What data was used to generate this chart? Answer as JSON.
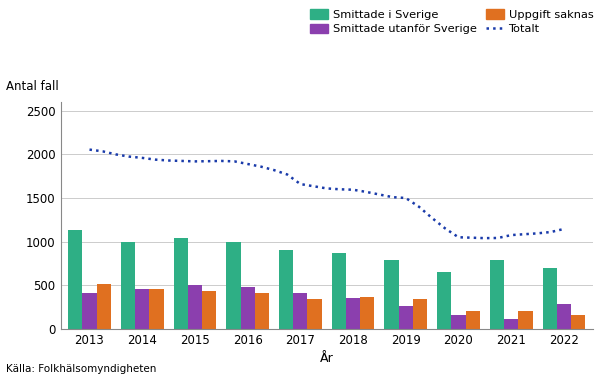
{
  "years": [
    2013,
    2014,
    2015,
    2016,
    2017,
    2018,
    2019,
    2020,
    2021,
    2022
  ],
  "smittade_sverige": [
    1130,
    1000,
    1040,
    1000,
    900,
    875,
    785,
    655,
    785,
    700
  ],
  "smittade_utanfor": [
    415,
    455,
    500,
    480,
    410,
    355,
    265,
    155,
    115,
    285
  ],
  "uppgift_saknas": [
    510,
    455,
    430,
    415,
    345,
    370,
    340,
    210,
    205,
    155
  ],
  "totalt_years": [
    2013,
    2013.25,
    2013.5,
    2013.75,
    2014,
    2014.25,
    2014.5,
    2014.75,
    2015,
    2015.25,
    2015.5,
    2015.75,
    2016,
    2016.25,
    2016.5,
    2016.75,
    2017,
    2017.25,
    2017.5,
    2017.75,
    2018,
    2018.25,
    2018.5,
    2018.75,
    2019,
    2019.25,
    2019.5,
    2019.75,
    2020,
    2020.25,
    2020.5,
    2020.75,
    2021,
    2021.25,
    2021.5,
    2021.75,
    2022
  ],
  "totalt_values": [
    2055,
    2035,
    2000,
    1975,
    1960,
    1940,
    1930,
    1925,
    1920,
    1922,
    1925,
    1920,
    1890,
    1860,
    1820,
    1770,
    1660,
    1635,
    1610,
    1600,
    1595,
    1570,
    1540,
    1510,
    1500,
    1400,
    1270,
    1150,
    1050,
    1045,
    1040,
    1042,
    1075,
    1085,
    1095,
    1110,
    1145
  ],
  "color_sverige": "#2EAF85",
  "color_utanfor": "#8B3FAE",
  "color_uppgift": "#E07020",
  "color_totalt": "#1A3BAA",
  "ylabel": "Antal fall",
  "xlabel": "År",
  "ylim": [
    0,
    2600
  ],
  "yticks": [
    0,
    500,
    1000,
    1500,
    2000,
    2500
  ],
  "source": "Källa: Folkhälsomyndigheten",
  "legend_smittade_sverige": "Smittade i Sverige",
  "legend_smittade_utanfor": "Smittade utanför Sverige",
  "legend_uppgift": "Uppgift saknas",
  "legend_totalt": "Totalt"
}
